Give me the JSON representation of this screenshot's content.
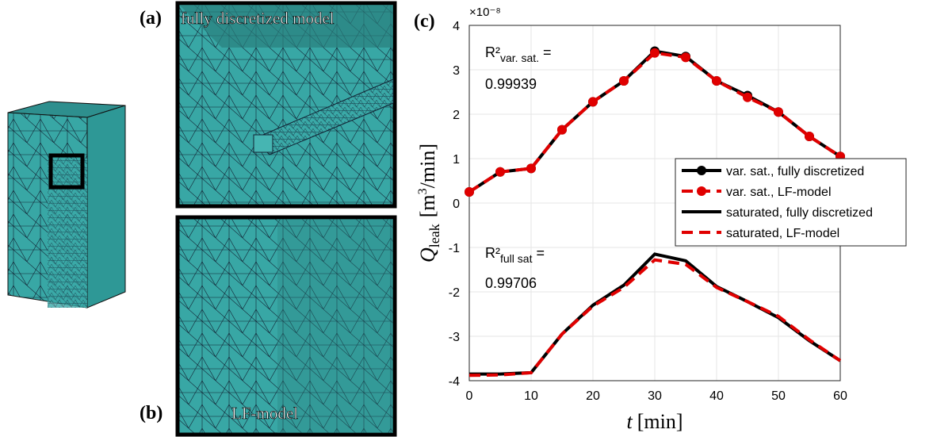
{
  "panels": {
    "a_label": "(a)",
    "a_title": "fully discretized model",
    "b_label": "(b)",
    "b_title": "LF-model",
    "c_label": "(c)"
  },
  "chart_data": {
    "type": "line",
    "x": [
      0,
      5,
      10,
      15,
      20,
      25,
      30,
      35,
      40,
      45,
      50,
      55,
      60
    ],
    "xlim": [
      0,
      60
    ],
    "xticks": [
      0,
      10,
      20,
      30,
      40,
      50,
      60
    ],
    "ylim": [
      -4,
      4
    ],
    "yticks": [
      -4,
      -3,
      -2,
      -1,
      0,
      1,
      2,
      3,
      4
    ],
    "y_multiplier": "×10⁻⁸",
    "grid": true,
    "legend": "right",
    "xlabel": [
      "t",
      "[min]"
    ],
    "ylabel": [
      "Q",
      "leak",
      "[m",
      "3",
      "/min]"
    ],
    "annotations": [
      [
        "R²",
        "var. sat.",
        " =",
        "0.99939"
      ],
      [
        "R²",
        "full sat",
        " =",
        "0.99706"
      ]
    ],
    "series": [
      {
        "name": "var. sat., fully discretized",
        "color": "#000000",
        "dash": false,
        "marker": true,
        "values": [
          0.25,
          0.7,
          0.78,
          1.65,
          2.28,
          2.75,
          3.42,
          3.3,
          2.75,
          2.42,
          2.05,
          1.5,
          1.05
        ]
      },
      {
        "name": "var. sat., LF-model",
        "color": "#e00000",
        "dash": true,
        "marker": true,
        "values": [
          0.25,
          0.7,
          0.78,
          1.65,
          2.28,
          2.75,
          3.38,
          3.28,
          2.75,
          2.38,
          2.05,
          1.5,
          1.05
        ]
      },
      {
        "name": "saturated, fully discretized",
        "color": "#000000",
        "dash": false,
        "marker": false,
        "values": [
          -3.85,
          -3.85,
          -3.82,
          -2.95,
          -2.3,
          -1.85,
          -1.15,
          -1.3,
          -1.88,
          -2.22,
          -2.58,
          -3.1,
          -3.55
        ]
      },
      {
        "name": "saturated, LF-model",
        "color": "#e00000",
        "dash": true,
        "marker": false,
        "values": [
          -3.88,
          -3.87,
          -3.82,
          -2.95,
          -2.32,
          -1.9,
          -1.28,
          -1.38,
          -1.9,
          -2.22,
          -2.55,
          -3.08,
          -3.55
        ]
      }
    ]
  }
}
